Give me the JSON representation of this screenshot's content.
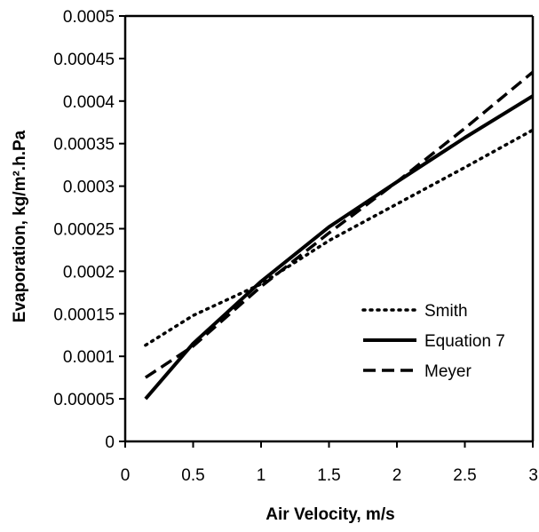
{
  "chart_data": {
    "type": "line",
    "title": "",
    "xlabel": "Air Velocity, m/s",
    "ylabel": "Evaporation, kg/m².h.Pa",
    "xlim": [
      0,
      3
    ],
    "ylim": [
      0,
      0.0005
    ],
    "xticks": [
      "0",
      "0.5",
      "1",
      "1.5",
      "2",
      "2.5",
      "3"
    ],
    "yticks": [
      "0",
      "0.00005",
      "0.0001",
      "0.00015",
      "0.0002",
      "0.00025",
      "0.0003",
      "0.00035",
      "0.0004",
      "0.00045",
      "0.0005"
    ],
    "grid": false,
    "legend_position": "lower-right",
    "series": [
      {
        "name": "Smith",
        "line_style": "dotted",
        "x": [
          0.15,
          0.5,
          1.0,
          1.5,
          2.0,
          2.5,
          3.0
        ],
        "y": [
          0.000113,
          0.000148,
          0.000185,
          0.000236,
          0.000279,
          0.000322,
          0.000366
        ]
      },
      {
        "name": "Equation 7",
        "line_style": "solid",
        "x": [
          0.15,
          0.5,
          1.0,
          1.5,
          2.0,
          2.5,
          3.0
        ],
        "y": [
          5e-05,
          0.000115,
          0.000188,
          0.000252,
          0.000305,
          0.000357,
          0.000406
        ]
      },
      {
        "name": "Meyer",
        "line_style": "dashed",
        "x": [
          0.15,
          0.5,
          1.0,
          1.5,
          2.0,
          2.5,
          3.0
        ],
        "y": [
          7.5e-05,
          0.000112,
          0.000182,
          0.000245,
          0.000305,
          0.000368,
          0.000434
        ]
      }
    ],
    "colors": {
      "line": "#000000",
      "background": "#ffffff"
    }
  }
}
